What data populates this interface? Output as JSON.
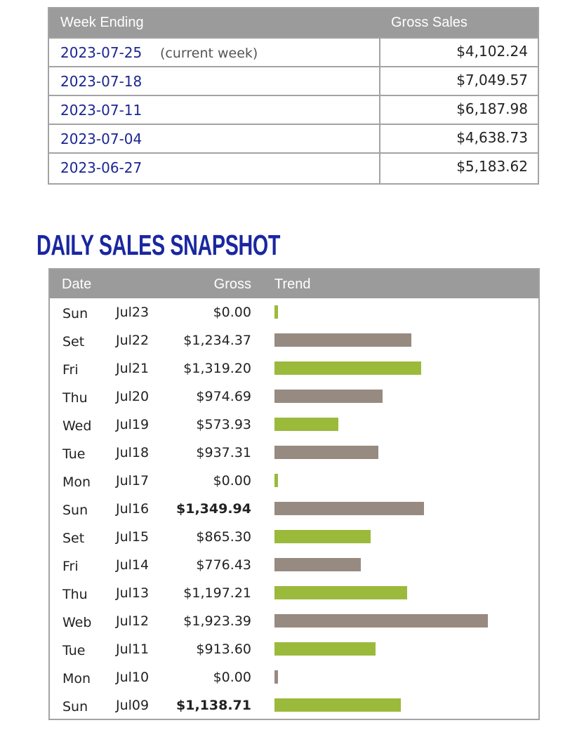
{
  "weekly": {
    "headers": [
      "Week Ending",
      "Gross Sales"
    ],
    "rows": [
      {
        "week": "2023-07-25",
        "note": "(current week)",
        "gross": "$4,102.24"
      },
      {
        "week": "2023-07-18",
        "gross": "$7,049.57"
      },
      {
        "week": "2023-07-11",
        "gross": "$6,187.98"
      },
      {
        "week": "2023-07-04",
        "gross": "$4,638.73"
      },
      {
        "week": "2023-06-27",
        "gross": "$5,183.62"
      }
    ]
  },
  "daily": {
    "title": "DAILY SALES SNAPSHOT",
    "headers": [
      "Date",
      "Gross",
      "Trend"
    ],
    "trend_colors": [
      "#9bba3c",
      "#978a80"
    ],
    "rows": [
      {
        "day": "Sun",
        "date": "Jul23",
        "gross": "$0.00",
        "value": 0
      },
      {
        "day": "Set",
        "date": "Jul22",
        "gross": "$1,234.37",
        "value": 1234.37
      },
      {
        "day": "Fri",
        "date": "Jul21",
        "gross": "$1,319.20",
        "value": 1319.2
      },
      {
        "day": "Thu",
        "date": "Jul20",
        "gross": "$974.69",
        "value": 974.69
      },
      {
        "day": "Wed",
        "date": "Jul19",
        "gross": "$573.93",
        "value": 573.93
      },
      {
        "day": "Tue",
        "date": "Jul18",
        "gross": "$937.31",
        "value": 937.31
      },
      {
        "day": "Mon",
        "date": "Jul17",
        "gross": "$0.00",
        "value": 0
      },
      {
        "day": "Sun",
        "date": "Jul16",
        "gross": "$1,349.94",
        "value": 1349.94,
        "bold": true
      },
      {
        "day": "Set",
        "date": "Jul15",
        "gross": "$865.30",
        "value": 865.3
      },
      {
        "day": "Fri",
        "date": "Jul14",
        "gross": "$776.43",
        "value": 776.43
      },
      {
        "day": "Thu",
        "date": "Jul13",
        "gross": "$1,197.21",
        "value": 1197.21
      },
      {
        "day": "Web",
        "date": "Jul12",
        "gross": "$1,923.39",
        "value": 1923.39
      },
      {
        "day": "Tue",
        "date": "Jul11",
        "gross": "$913.60",
        "value": 913.6
      },
      {
        "day": "Mon",
        "date": "Jul10",
        "gross": "$0.00",
        "value": 0
      },
      {
        "day": "Sun",
        "date": "Jul09",
        "gross": "$1,138.71",
        "value": 1138.71,
        "bold": true
      }
    ]
  }
}
